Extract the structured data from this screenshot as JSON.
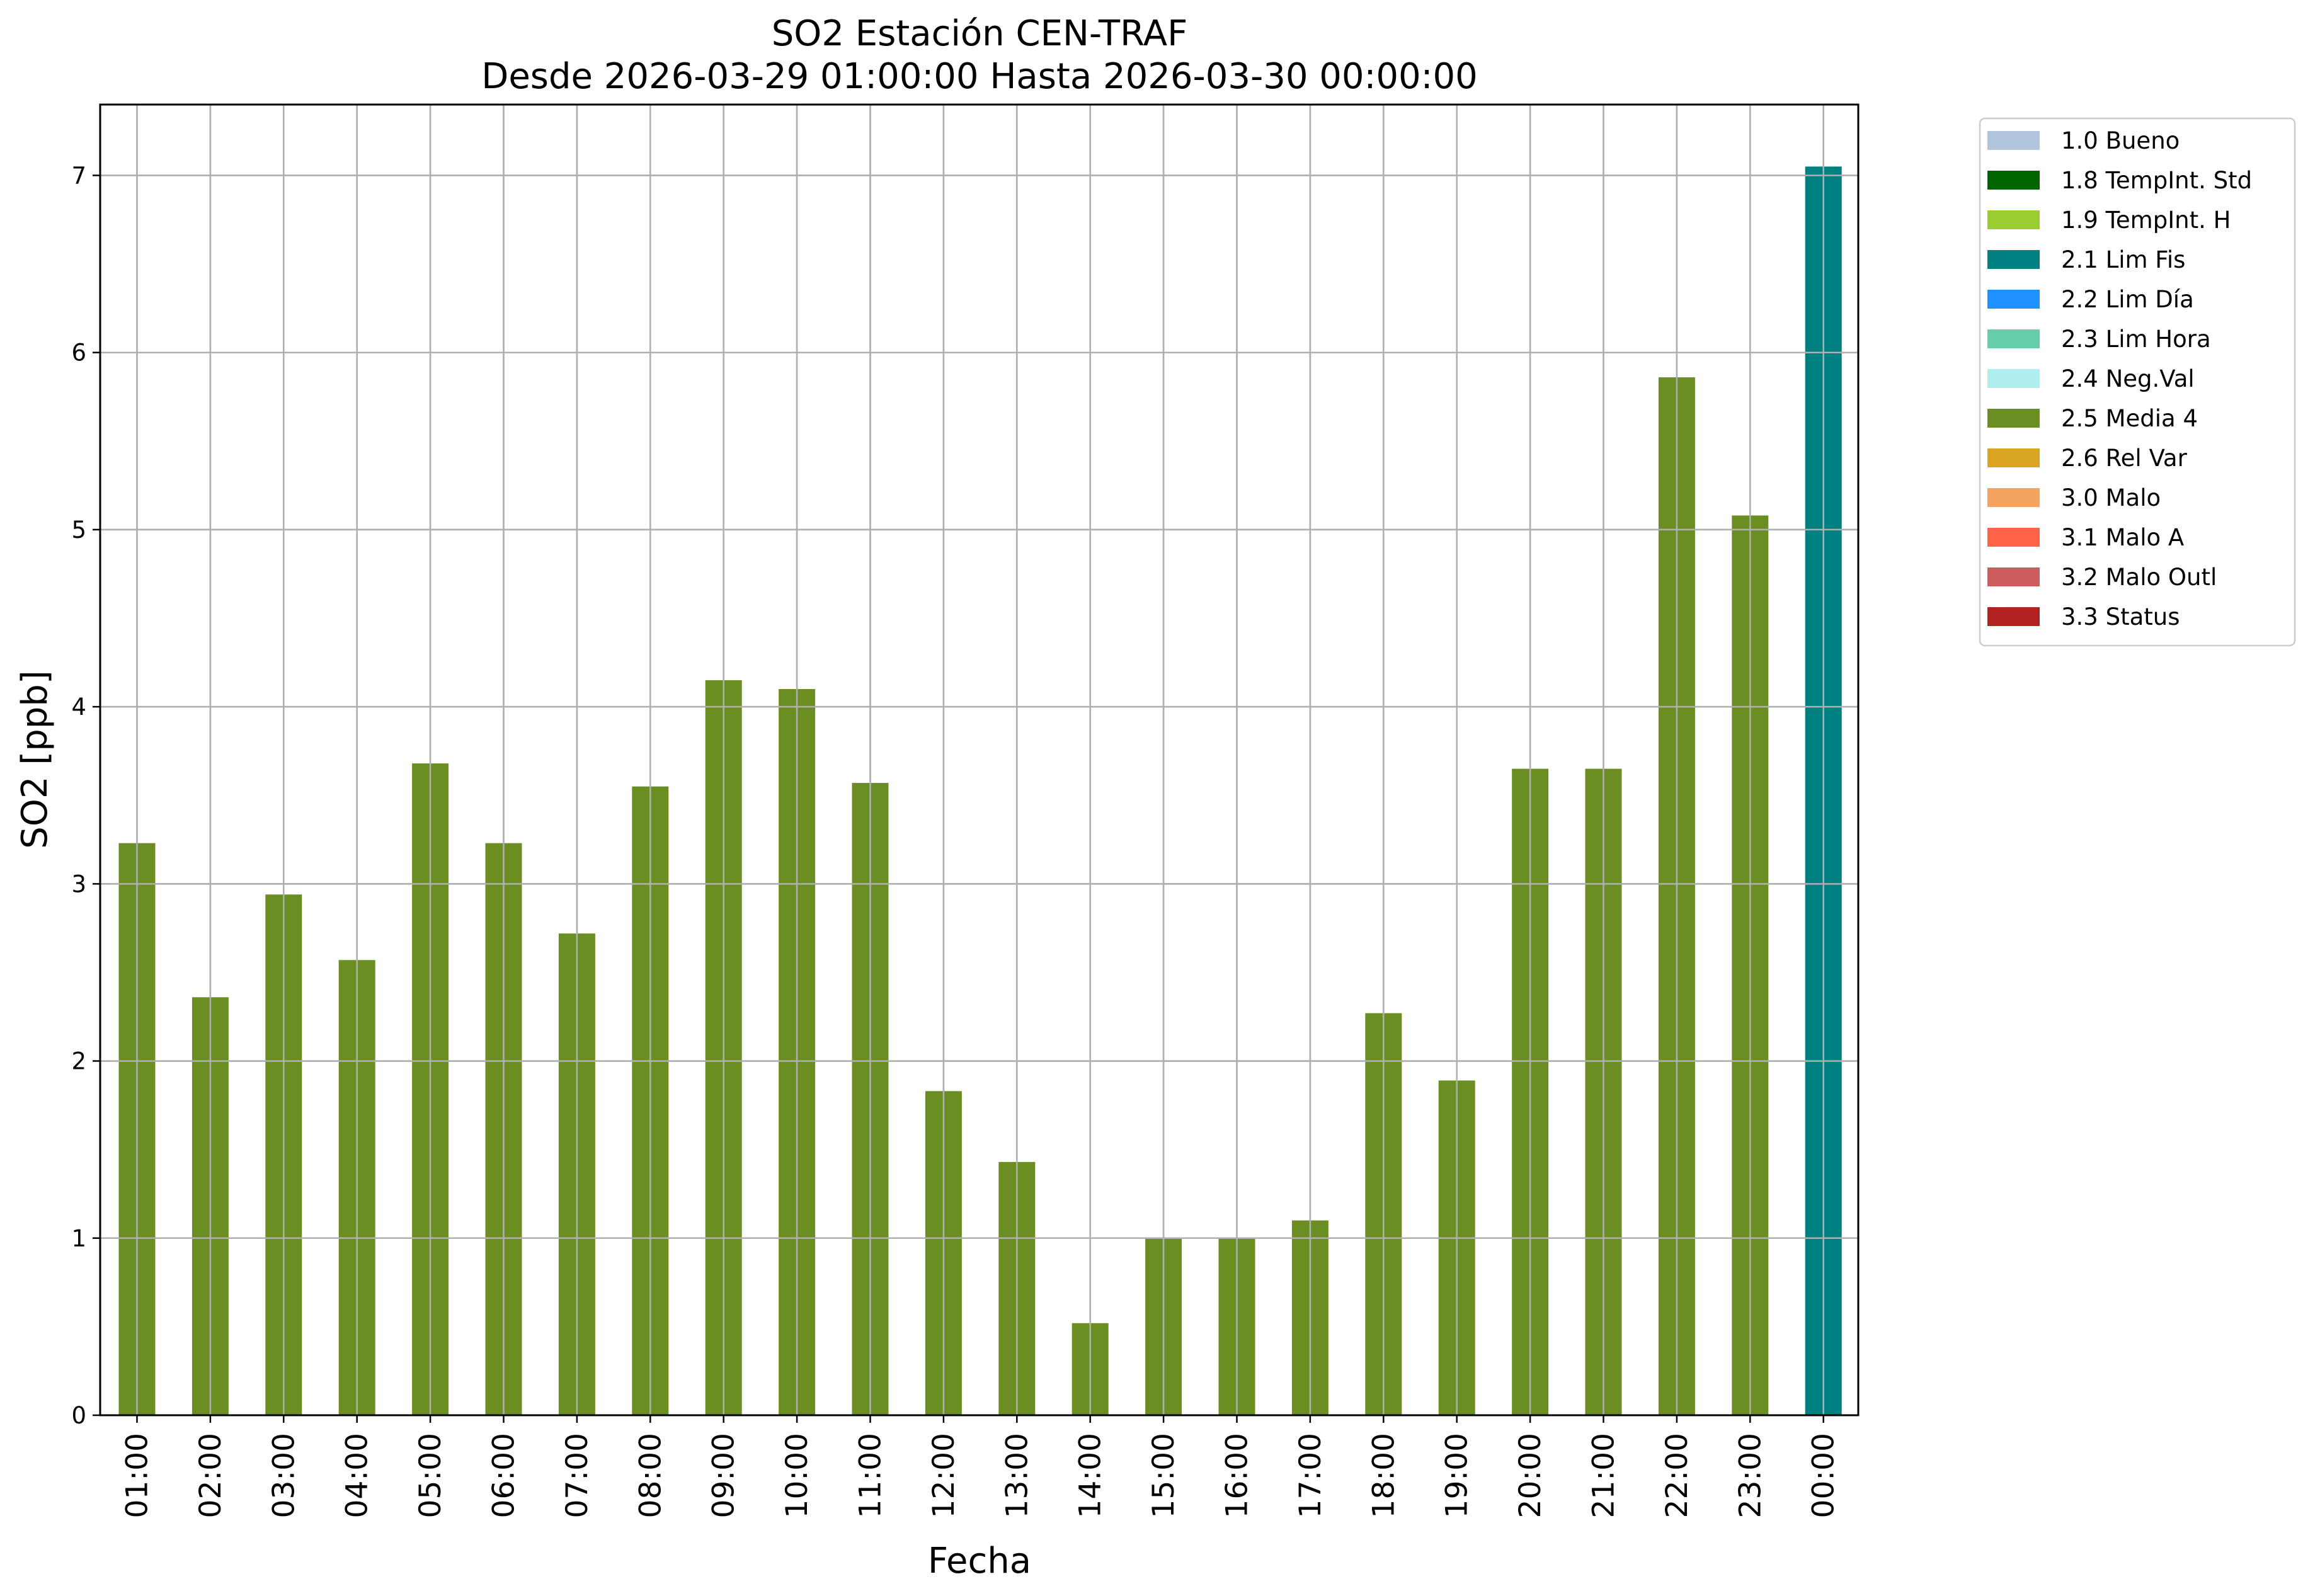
{
  "chart_data": {
    "type": "bar",
    "title": "SO2 Estación CEN-TRAF",
    "subtitle": "Desde 2026-03-29 01:00:00 Hasta 2026-03-30 00:00:00",
    "xlabel": "Fecha",
    "ylabel": "SO2 [ppb]",
    "ylim": [
      0,
      7.4
    ],
    "yticks": [
      0,
      1,
      2,
      3,
      4,
      5,
      6,
      7
    ],
    "grid": true,
    "legend_position": "outside-right-top",
    "categories": [
      "01:00",
      "02:00",
      "03:00",
      "04:00",
      "05:00",
      "06:00",
      "07:00",
      "08:00",
      "09:00",
      "10:00",
      "11:00",
      "12:00",
      "13:00",
      "14:00",
      "15:00",
      "16:00",
      "17:00",
      "18:00",
      "19:00",
      "20:00",
      "21:00",
      "22:00",
      "23:00",
      "00:00"
    ],
    "values": [
      3.23,
      2.36,
      2.94,
      2.57,
      3.68,
      3.23,
      2.72,
      3.55,
      4.15,
      4.1,
      3.57,
      1.83,
      1.43,
      0.52,
      1.0,
      1.0,
      1.1,
      2.27,
      1.89,
      3.65,
      3.65,
      5.86,
      5.08,
      7.05
    ],
    "flags": [
      "2.5 Media 4",
      "2.5 Media 4",
      "2.5 Media 4",
      "2.5 Media 4",
      "2.5 Media 4",
      "2.5 Media 4",
      "2.5 Media 4",
      "2.5 Media 4",
      "2.5 Media 4",
      "2.5 Media 4",
      "2.5 Media 4",
      "2.5 Media 4",
      "2.5 Media 4",
      "2.5 Media 4",
      "2.5 Media 4",
      "2.5 Media 4",
      "2.5 Media 4",
      "2.5 Media 4",
      "2.5 Media 4",
      "2.5 Media 4",
      "2.5 Media 4",
      "2.5 Media 4",
      "2.5 Media 4",
      "2.1 Lim Fis"
    ],
    "legend": [
      {
        "label": "1.0 Bueno",
        "color": "#b0c4de"
      },
      {
        "label": "1.8 TempInt. Std",
        "color": "#006400"
      },
      {
        "label": "1.9 TempInt. H",
        "color": "#9acd32"
      },
      {
        "label": "2.1 Lim Fis",
        "color": "#008080"
      },
      {
        "label": "2.2 Lim Día",
        "color": "#1e90ff"
      },
      {
        "label": "2.3 Lim Hora",
        "color": "#66cdaa"
      },
      {
        "label": "2.4 Neg.Val",
        "color": "#afeeee"
      },
      {
        "label": "2.5 Media 4",
        "color": "#6b8e23"
      },
      {
        "label": "2.6 Rel Var",
        "color": "#daa520"
      },
      {
        "label": "3.0 Malo",
        "color": "#f4a460"
      },
      {
        "label": "3.1 Malo A",
        "color": "#ff6347"
      },
      {
        "label": "3.2 Malo Outl",
        "color": "#cd5c5c"
      },
      {
        "label": "3.3 Status",
        "color": "#b22222"
      }
    ]
  }
}
